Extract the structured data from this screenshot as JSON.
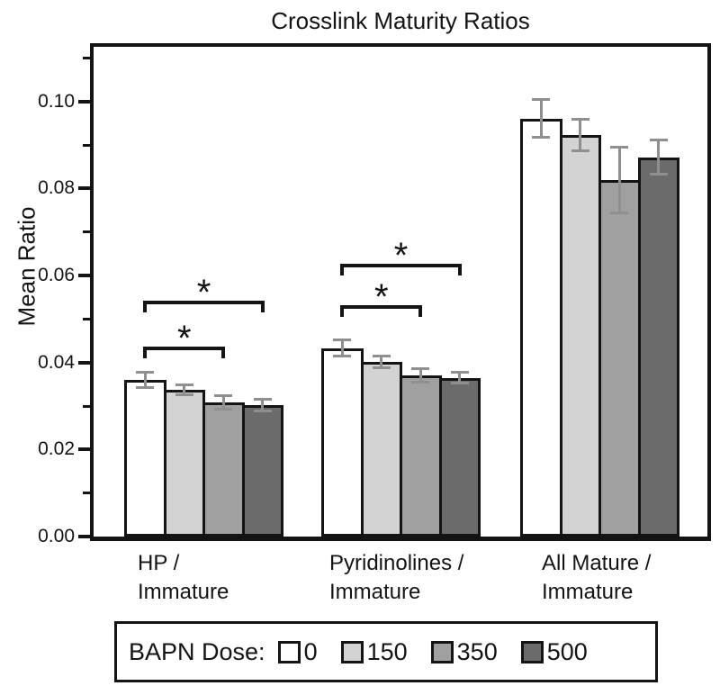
{
  "chart_data": {
    "type": "bar",
    "title": "Crosslink Maturity Ratios",
    "ylabel": "Mean Ratio",
    "xlabel": "",
    "ylim": [
      0,
      0.1126
    ],
    "grid": false,
    "ytick_values": [
      0,
      0.02,
      0.04,
      0.06,
      0.08,
      0.1
    ],
    "ytick_labels": [
      "0.00",
      "0.02",
      "0.04",
      "0.06",
      "0.08",
      "0.10"
    ],
    "yminor_values": [
      0.01,
      0.03,
      0.05,
      0.07,
      0.09,
      0.11
    ],
    "categories": [
      "HP / Immature",
      "Pyridinolines / Immature",
      "All Mature / Immature"
    ],
    "category_lines": [
      [
        "HP /",
        "Immature"
      ],
      [
        "Pyridinolines /",
        "Immature"
      ],
      [
        "All Mature /",
        "Immature"
      ]
    ],
    "series": [
      {
        "name": "0",
        "color": "#ffffff",
        "values": [
          0.036,
          0.0433,
          0.0961
        ],
        "errors": [
          0.0017,
          0.0019,
          0.0044
        ]
      },
      {
        "name": "150",
        "color": "#d3d3d3",
        "values": [
          0.0337,
          0.0402,
          0.0923
        ],
        "errors": [
          0.0012,
          0.0013,
          0.0036
        ]
      },
      {
        "name": "350",
        "color": "#a0a0a0",
        "values": [
          0.0308,
          0.0371,
          0.082
        ],
        "errors": [
          0.0016,
          0.0015,
          0.0075
        ]
      },
      {
        "name": "500",
        "color": "#6b6b6b",
        "values": [
          0.0302,
          0.0365,
          0.0872
        ],
        "errors": [
          0.0014,
          0.0012,
          0.0039
        ]
      }
    ],
    "error_bar_color": "#8f8f8f",
    "bar_outline_color": "#141414",
    "significance_brackets": [
      {
        "category": 0,
        "from_series": 0,
        "to_series": 2,
        "y": 0.0437,
        "label": "*"
      },
      {
        "category": 0,
        "from_series": 0,
        "to_series": 3,
        "y": 0.0542,
        "label": "*"
      },
      {
        "category": 1,
        "from_series": 0,
        "to_series": 2,
        "y": 0.0532,
        "label": "*"
      },
      {
        "category": 1,
        "from_series": 0,
        "to_series": 3,
        "y": 0.0627,
        "label": "*"
      }
    ],
    "legend": {
      "title": "BAPN Dose:",
      "position": "bottom",
      "entries": [
        {
          "label": "0",
          "color": "#ffffff"
        },
        {
          "label": "150",
          "color": "#d3d3d3"
        },
        {
          "label": "350",
          "color": "#a0a0a0"
        },
        {
          "label": "500",
          "color": "#6b6b6b"
        }
      ]
    }
  }
}
